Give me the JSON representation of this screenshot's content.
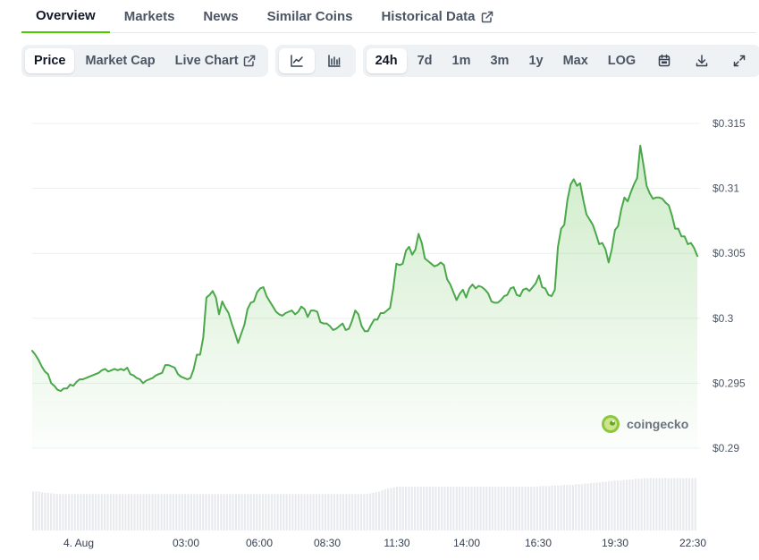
{
  "tabs": [
    {
      "label": "Overview",
      "active": true
    },
    {
      "label": "Markets",
      "active": false
    },
    {
      "label": "News",
      "active": false
    },
    {
      "label": "Similar Coins",
      "active": false
    },
    {
      "label": "Historical Data",
      "active": false,
      "external": true
    }
  ],
  "toolbar": {
    "metric": [
      "Price",
      "Market Cap",
      "Live Chart"
    ],
    "metric_active": "Price",
    "chart_style_icons": [
      "line-chart-icon",
      "candlestick-chart-icon"
    ],
    "ranges": [
      "24h",
      "7d",
      "1m",
      "3m",
      "1y",
      "Max",
      "LOG"
    ],
    "range_active": "24h",
    "action_icons": [
      "calendar-icon",
      "download-icon",
      "expand-icon"
    ]
  },
  "watermark": "coingecko",
  "colors": {
    "accent": "#4bcc00",
    "line": "#4aa84a",
    "fill": "#5cbf4a",
    "volume": "#e8eaed",
    "grid": "#eceff1"
  },
  "chart_data": {
    "type": "area",
    "ylim": [
      0.29,
      0.315
    ],
    "yticks": [
      "$0.29",
      "$0.295",
      "$0.3",
      "$0.305",
      "$0.31",
      "$0.315"
    ],
    "xticks": [
      "4. Aug",
      "03:00",
      "06:00",
      "08:30",
      "11:30",
      "14:00",
      "16:30",
      "19:30",
      "22:30"
    ],
    "grid": true,
    "series": [
      {
        "price": [
          0.2975,
          0.2972,
          0.2968,
          0.2963,
          0.2959,
          0.2957,
          0.295,
          0.2948,
          0.2945,
          0.2944,
          0.2946,
          0.2946,
          0.2949,
          0.2948,
          0.2951,
          0.2953,
          0.2953,
          0.2954,
          0.2955,
          0.2956,
          0.2957,
          0.2958,
          0.296,
          0.2961,
          0.2959,
          0.296,
          0.2961,
          0.296,
          0.2961,
          0.296,
          0.2962,
          0.2957,
          0.2956,
          0.2954,
          0.2953,
          0.295,
          0.2952,
          0.2953,
          0.2954,
          0.2956,
          0.2957,
          0.2958,
          0.2964,
          0.2964,
          0.2963,
          0.2962,
          0.2957,
          0.2955,
          0.2954,
          0.2953,
          0.2954,
          0.2961,
          0.2972,
          0.2972,
          0.2985,
          0.3016,
          0.3018,
          0.3021,
          0.3016,
          0.3003,
          0.3013,
          0.3008,
          0.3004,
          0.2996,
          0.2989,
          0.2981,
          0.2988,
          0.2995,
          0.3007,
          0.3012,
          0.3013,
          0.302,
          0.3023,
          0.3024,
          0.3017,
          0.3013,
          0.3009,
          0.3005,
          0.3003,
          0.3002,
          0.3004,
          0.3005,
          0.3006,
          0.3003,
          0.3005,
          0.3009,
          0.3007,
          0.3001,
          0.3006,
          0.3006,
          0.3005,
          0.2997,
          0.2996,
          0.2996,
          0.2994,
          0.2991,
          0.2992,
          0.2994,
          0.2996,
          0.2991,
          0.2992,
          0.2998,
          0.3006,
          0.3003,
          0.2994,
          0.299,
          0.299,
          0.2995,
          0.2999,
          0.2999,
          0.3004,
          0.3004,
          0.3006,
          0.3008,
          0.3023,
          0.3042,
          0.3041,
          0.3042,
          0.3052,
          0.3055,
          0.3049,
          0.3053,
          0.3065,
          0.3058,
          0.3046,
          0.3044,
          0.3042,
          0.304,
          0.3041,
          0.3043,
          0.3041,
          0.303,
          0.3026,
          0.302,
          0.3014,
          0.3019,
          0.3022,
          0.3016,
          0.3023,
          0.3026,
          0.3023,
          0.3025,
          0.3024,
          0.3022,
          0.3019,
          0.3013,
          0.3012,
          0.3012,
          0.3014,
          0.3017,
          0.3018,
          0.3023,
          0.3024,
          0.3018,
          0.3017,
          0.3022,
          0.3023,
          0.3021,
          0.3024,
          0.3027,
          0.3033,
          0.3024,
          0.3023,
          0.3018,
          0.3017,
          0.3022,
          0.3055,
          0.3069,
          0.3072,
          0.3091,
          0.3103,
          0.3107,
          0.3102,
          0.3104,
          0.3091,
          0.308,
          0.3076,
          0.3072,
          0.3065,
          0.3057,
          0.3058,
          0.3053,
          0.3043,
          0.3053,
          0.3068,
          0.3071,
          0.3084,
          0.3093,
          0.309,
          0.3097,
          0.3103,
          0.3108,
          0.3133,
          0.3118,
          0.3102,
          0.3096,
          0.3092,
          0.3093,
          0.3093,
          0.3092,
          0.3089,
          0.3087,
          0.3079,
          0.3069,
          0.3069,
          0.3063,
          0.3063,
          0.3057,
          0.3058,
          0.3054,
          0.3048
        ]
      }
    ],
    "volume": [
      0.64,
      0.64,
      0.64,
      0.63,
      0.62,
      0.62,
      0.61,
      0.61,
      0.6,
      0.6,
      0.6,
      0.6,
      0.6,
      0.6,
      0.6,
      0.6,
      0.6,
      0.6,
      0.6,
      0.6,
      0.6,
      0.6,
      0.6,
      0.6,
      0.6,
      0.6,
      0.6,
      0.6,
      0.6,
      0.6,
      0.6,
      0.6,
      0.6,
      0.6,
      0.6,
      0.6,
      0.6,
      0.6,
      0.6,
      0.6,
      0.6,
      0.6,
      0.6,
      0.6,
      0.6,
      0.6,
      0.6,
      0.6,
      0.6,
      0.6,
      0.6,
      0.6,
      0.6,
      0.6,
      0.6,
      0.6,
      0.6,
      0.6,
      0.6,
      0.6,
      0.6,
      0.6,
      0.6,
      0.6,
      0.6,
      0.6,
      0.6,
      0.6,
      0.6,
      0.6,
      0.6,
      0.6,
      0.6,
      0.6,
      0.6,
      0.6,
      0.6,
      0.6,
      0.6,
      0.6,
      0.6,
      0.6,
      0.6,
      0.6,
      0.6,
      0.6,
      0.6,
      0.6,
      0.6,
      0.6,
      0.6,
      0.6,
      0.6,
      0.6,
      0.6,
      0.6,
      0.6,
      0.6,
      0.6,
      0.6,
      0.6,
      0.6,
      0.6,
      0.6,
      0.6,
      0.6,
      0.6,
      0.6,
      0.6,
      0.6,
      0.6,
      0.6,
      0.6,
      0.61,
      0.62,
      0.63,
      0.64,
      0.66,
      0.68,
      0.69,
      0.7,
      0.71,
      0.72,
      0.72,
      0.72,
      0.72,
      0.72,
      0.72,
      0.72,
      0.72,
      0.72,
      0.72,
      0.72,
      0.72,
      0.72,
      0.72,
      0.72,
      0.72,
      0.72,
      0.72,
      0.72,
      0.72,
      0.72,
      0.72,
      0.72,
      0.72,
      0.72,
      0.72,
      0.72,
      0.72,
      0.72,
      0.72,
      0.72,
      0.72,
      0.72,
      0.72,
      0.72,
      0.72,
      0.72,
      0.72,
      0.72,
      0.72,
      0.72,
      0.72,
      0.72,
      0.72,
      0.72,
      0.72,
      0.72,
      0.72,
      0.73,
      0.73,
      0.73,
      0.73,
      0.74,
      0.74,
      0.74,
      0.74,
      0.75,
      0.75,
      0.75,
      0.75,
      0.76,
      0.76,
      0.76,
      0.77,
      0.77,
      0.78,
      0.78,
      0.79,
      0.79,
      0.8,
      0.8,
      0.81,
      0.81,
      0.82,
      0.82,
      0.82,
      0.83,
      0.83,
      0.84,
      0.84,
      0.85,
      0.85,
      0.85,
      0.86,
      0.86,
      0.86,
      0.86,
      0.86,
      0.86,
      0.86,
      0.86,
      0.86,
      0.86,
      0.86,
      0.86,
      0.86,
      0.86,
      0.86,
      0.86,
      0.86,
      0.86
    ]
  }
}
